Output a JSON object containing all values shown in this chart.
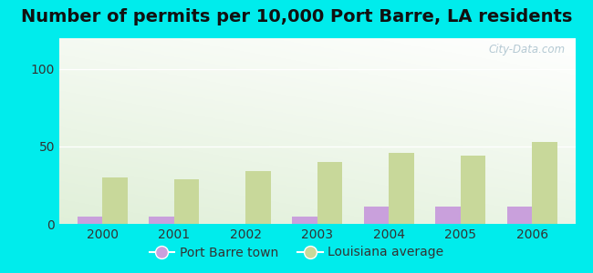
{
  "title": "Number of permits per 10,000 Port Barre, LA residents",
  "years": [
    2000,
    2001,
    2002,
    2003,
    2004,
    2005,
    2006
  ],
  "port_barre": [
    5,
    5,
    0,
    5,
    11,
    11,
    11
  ],
  "louisiana": [
    30,
    29,
    34,
    40,
    46,
    44,
    53
  ],
  "bar_color_town": "#c9a0dc",
  "bar_color_la": "#c8d89a",
  "background_outer": "#00ecec",
  "ylim": [
    0,
    120
  ],
  "yticks": [
    0,
    50,
    100
  ],
  "title_fontsize": 14,
  "tick_fontsize": 10,
  "legend_fontsize": 10,
  "bar_width": 0.35,
  "watermark": "City-Data.com",
  "legend_label_town": "Port Barre town",
  "legend_label_la": "Louisiana average"
}
